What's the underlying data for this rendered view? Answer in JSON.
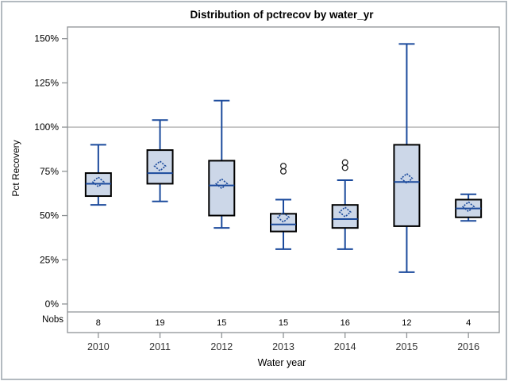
{
  "chart_data": {
    "type": "box",
    "title": "Distribution of pctrecov by water_yr",
    "xlabel": "Water year",
    "ylabel": "Pct Recovery",
    "nobs_row_label": "Nobs",
    "categories": [
      "2010",
      "2011",
      "2012",
      "2013",
      "2014",
      "2015",
      "2016"
    ],
    "y_tick_values": [
      0,
      25,
      50,
      75,
      100,
      125,
      150
    ],
    "y_tick_labels": [
      "0%",
      "25%",
      "50%",
      "75%",
      "100%",
      "125%",
      "150%"
    ],
    "ylim": [
      -4.5,
      156.6
    ],
    "reference_line": 100,
    "grid": "off",
    "legend": "none",
    "series": [
      {
        "category": "2010",
        "nobs": 8,
        "whisker_low": 56,
        "q1": 61,
        "median": 68,
        "mean": 69,
        "q3": 74,
        "whisker_high": 90,
        "outliers": []
      },
      {
        "category": "2011",
        "nobs": 19,
        "whisker_low": 58,
        "q1": 68,
        "median": 74,
        "mean": 78,
        "q3": 87,
        "whisker_high": 104,
        "outliers": []
      },
      {
        "category": "2012",
        "nobs": 15,
        "whisker_low": 43,
        "q1": 50,
        "median": 67,
        "mean": 68,
        "q3": 81,
        "whisker_high": 115,
        "outliers": []
      },
      {
        "category": "2013",
        "nobs": 15,
        "whisker_low": 31,
        "q1": 41,
        "median": 45,
        "mean": 49,
        "q3": 51,
        "whisker_high": 59,
        "outliers": [
          75,
          78
        ]
      },
      {
        "category": "2014",
        "nobs": 16,
        "whisker_low": 31,
        "q1": 43,
        "median": 48,
        "mean": 52,
        "q3": 56,
        "whisker_high": 70,
        "outliers": [
          77,
          80
        ]
      },
      {
        "category": "2015",
        "nobs": 12,
        "whisker_low": 18,
        "q1": 44,
        "median": 69,
        "mean": 71,
        "q3": 90,
        "whisker_high": 147,
        "outliers": []
      },
      {
        "category": "2016",
        "nobs": 4,
        "whisker_low": 47,
        "q1": 49,
        "median": 54,
        "mean": 55,
        "q3": 59,
        "whisker_high": 62,
        "outliers": []
      }
    ],
    "colors": {
      "box_fill": "#ccd7e8",
      "box_border": "#000000",
      "whisker": "#1b4a9c",
      "median": "#1b4a9c",
      "mean_marker": "#1b4a9c",
      "outlier": "#262626",
      "reference_line": "#a8a8a8",
      "axis_frame": "#8f9396",
      "tick_label": "#000000",
      "x_tick_label": "#333333",
      "figure_border": "#b3bac0"
    }
  }
}
